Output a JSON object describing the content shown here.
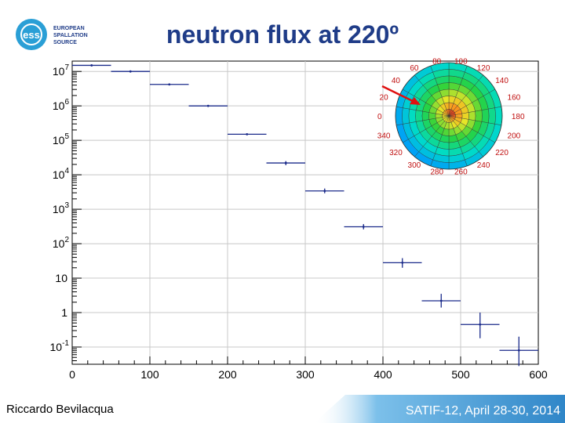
{
  "slide": {
    "title": "neutron flux at 220º",
    "author": "Riccardo Bevilacqua",
    "footer": "SATIF-12, April 28-30, 2014"
  },
  "logo": {
    "line1": "EUROPEAN",
    "line2": "SPALLATION",
    "line3": "SOURCE",
    "mark": "ess"
  },
  "colors": {
    "title": "#1f3c88",
    "data": "#1a2a8a",
    "arrow": "#e01010",
    "footer_band": "#3b8fcf"
  },
  "chart_data": {
    "type": "scatter",
    "title": "",
    "xlabel": "",
    "ylabel": "",
    "xlim": [
      0,
      600
    ],
    "ylim_log10": [
      -1.5,
      7.3
    ],
    "y_scale": "log",
    "x_ticks": [
      "0",
      "100",
      "200",
      "300",
      "400",
      "500",
      "600"
    ],
    "y_ticks": [
      {
        "base": "10",
        "exp": "7"
      },
      {
        "base": "10",
        "exp": "6"
      },
      {
        "base": "10",
        "exp": "5"
      },
      {
        "base": "10",
        "exp": "4"
      },
      {
        "base": "10",
        "exp": "3"
      },
      {
        "base": "10",
        "exp": "2"
      },
      {
        "base": "10",
        "exp": ""
      },
      {
        "base": "1",
        "exp": ""
      },
      {
        "base": "10",
        "exp": "-1"
      }
    ],
    "series": [
      {
        "name": "neutron flux",
        "points": [
          {
            "x": 25,
            "x_err": 25,
            "y": 15000000.0,
            "y_lo": 15000000.0,
            "y_hi": 15000000.0
          },
          {
            "x": 75,
            "x_err": 25,
            "y": 10000000.0,
            "y_lo": 10000000.0,
            "y_hi": 10000000.0
          },
          {
            "x": 125,
            "x_err": 25,
            "y": 4200000.0,
            "y_lo": 4000000.0,
            "y_hi": 4400000.0
          },
          {
            "x": 175,
            "x_err": 25,
            "y": 1000000.0,
            "y_lo": 1000000.0,
            "y_hi": 1000000.0
          },
          {
            "x": 225,
            "x_err": 25,
            "y": 150000.0,
            "y_lo": 150000.0,
            "y_hi": 150000.0
          },
          {
            "x": 275,
            "x_err": 25,
            "y": 22000.0,
            "y_lo": 19000.0,
            "y_hi": 25000.0
          },
          {
            "x": 325,
            "x_err": 25,
            "y": 3400.0,
            "y_lo": 2900.0,
            "y_hi": 4000.0
          },
          {
            "x": 375,
            "x_err": 25,
            "y": 310.0,
            "y_lo": 260.0,
            "y_hi": 370.0
          },
          {
            "x": 425,
            "x_err": 25,
            "y": 28,
            "y_lo": 20,
            "y_hi": 38
          },
          {
            "x": 475,
            "x_err": 25,
            "y": 2.2,
            "y_lo": 1.4,
            "y_hi": 3.5
          },
          {
            "x": 525,
            "x_err": 25,
            "y": 0.45,
            "y_lo": 0.18,
            "y_hi": 1.0
          },
          {
            "x": 575,
            "x_err": 25,
            "y": 0.08,
            "y_lo": 0.028,
            "y_hi": 0.2
          }
        ]
      }
    ],
    "inset": {
      "type": "polar-heatmap",
      "angle_labels": [
        "0",
        "20",
        "40",
        "60",
        "80",
        "100",
        "120",
        "140",
        "160",
        "180",
        "200",
        "220",
        "240",
        "260",
        "280",
        "300",
        "320",
        "340"
      ],
      "highlighted_angle": "220"
    }
  }
}
